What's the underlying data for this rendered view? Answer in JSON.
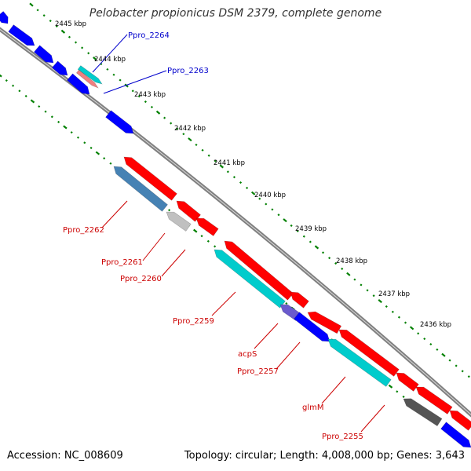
{
  "title": "Pelobacter propionicus DSM 2379, complete genome",
  "footer": {
    "accession": "Accession: NC_008609",
    "topology": "Topology: circular; Length: 4,008,000 bp; Genes: 3,643"
  },
  "scale_ticks": [
    "2445 kbp",
    "2444 kbp",
    "2443 kbp",
    "2442 kbp",
    "2441 kbp",
    "2440 kbp",
    "2439 kbp",
    "2438 kbp",
    "2437 kbp",
    "2436 kbp"
  ],
  "gene_labels": {
    "blue": [
      "Ppro_2264",
      "Ppro_2263"
    ],
    "red": [
      "Ppro_2262",
      "Ppro_2261",
      "Ppro_2260",
      "Ppro_2259",
      "acpS",
      "Ppro_2257",
      "glmM",
      "Ppro_2255"
    ]
  },
  "colors": {
    "forward_gene": "#0000ff",
    "reverse_gene": "#ff0000",
    "rna_gene": "#00cccc",
    "steel_gene": "#4682b4",
    "light_gray_gene": "#c0c0c0",
    "dark_gray_gene": "#555555",
    "pink_gene": "#f08080",
    "backbone": "#808080",
    "scale_dots": "#008000",
    "forward_label": "#0000cc",
    "reverse_label": "#cc0000"
  }
}
